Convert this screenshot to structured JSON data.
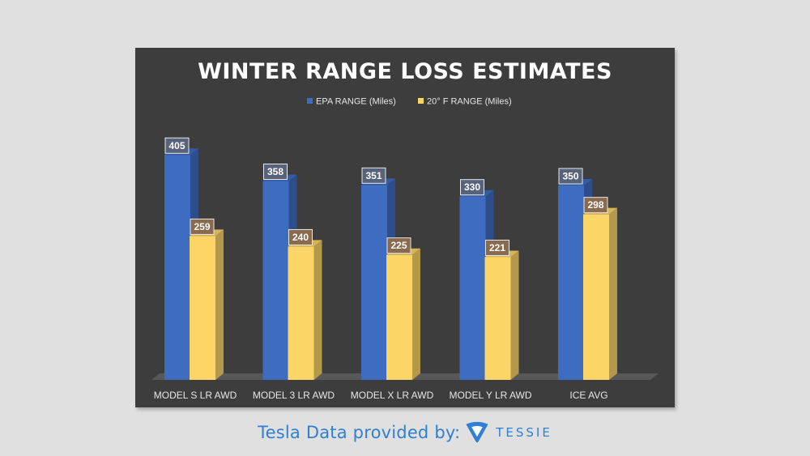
{
  "chart_data": {
    "type": "bar",
    "title": "WINTER RANGE LOSS ESTIMATES",
    "categories": [
      "MODEL S LR AWD",
      "MODEL 3 LR AWD",
      "MODEL X LR AWD",
      "MODEL Y LR AWD",
      "ICE AVG"
    ],
    "series": [
      {
        "name": "EPA RANGE (Miles)",
        "values": [
          405,
          358,
          351,
          330,
          350
        ],
        "color": "#3e6cc0"
      },
      {
        "name": "20° F RANGE (Miles)",
        "values": [
          259,
          240,
          225,
          221,
          298
        ],
        "color": "#fcd567"
      }
    ],
    "ylim": [
      0,
      420
    ],
    "legend_position": "top-center",
    "grid": false,
    "style": "3d-column"
  },
  "footer": {
    "text": "Tesla Data provided by:",
    "brand": "TESSIE",
    "logo_icon": "tessie-logo-icon",
    "color": "#2f7fd4"
  }
}
